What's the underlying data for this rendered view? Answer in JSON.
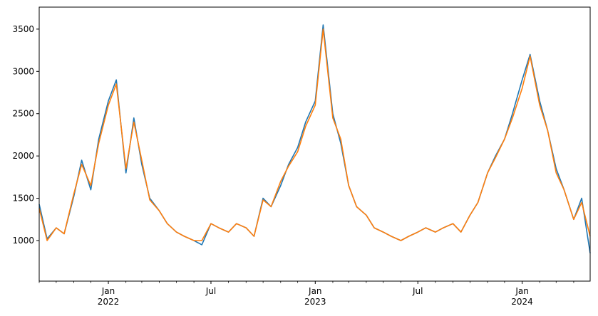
{
  "chart_data": {
    "type": "line",
    "title": "",
    "xlabel": "",
    "ylabel": "",
    "x_range": [
      "2021-09-01",
      "2024-04-30"
    ],
    "ylim": [
      520,
      3760
    ],
    "y_ticks": [
      1000,
      1500,
      2000,
      2500,
      3000,
      3500
    ],
    "y_tick_labels": [
      "1000",
      "1500",
      "2000",
      "2500",
      "3000",
      "3500"
    ],
    "x_major_ticks": [
      {
        "date": "2022-01-01",
        "label": "Jan",
        "year": "2022"
      },
      {
        "date": "2022-07-01",
        "label": "Jul",
        "year": ""
      },
      {
        "date": "2023-01-01",
        "label": "Jan",
        "year": "2023"
      },
      {
        "date": "2023-07-01",
        "label": "Jul",
        "year": ""
      },
      {
        "date": "2024-01-01",
        "label": "Jan",
        "year": "2024"
      }
    ],
    "x_minor_ticks": [
      "2021-09-01",
      "2021-10-01",
      "2021-11-01",
      "2021-12-01",
      "2022-02-01",
      "2022-03-01",
      "2022-04-01",
      "2022-05-01",
      "2022-06-01",
      "2022-08-01",
      "2022-09-01",
      "2022-10-01",
      "2022-11-01",
      "2022-12-01",
      "2023-02-01",
      "2023-03-01",
      "2023-04-01",
      "2023-05-01",
      "2023-06-01",
      "2023-08-01",
      "2023-09-01",
      "2023-10-01",
      "2023-11-01",
      "2023-12-01",
      "2024-02-01",
      "2024-03-01",
      "2024-04-01"
    ],
    "grid": false,
    "legend": "none",
    "series": [
      {
        "color": "#1f77b4",
        "x": [
          "2021-09-01",
          "2021-09-15",
          "2021-10-01",
          "2021-10-15",
          "2021-11-01",
          "2021-11-15",
          "2021-12-01",
          "2021-12-15",
          "2022-01-01",
          "2022-01-15",
          "2022-02-01",
          "2022-02-15",
          "2022-03-01",
          "2022-03-15",
          "2022-04-01",
          "2022-04-15",
          "2022-05-01",
          "2022-05-15",
          "2022-06-01",
          "2022-06-15",
          "2022-07-01",
          "2022-07-15",
          "2022-08-01",
          "2022-08-15",
          "2022-09-01",
          "2022-09-15",
          "2022-10-01",
          "2022-10-15",
          "2022-11-01",
          "2022-11-15",
          "2022-12-01",
          "2022-12-15",
          "2023-01-01",
          "2023-01-15",
          "2023-02-01",
          "2023-02-15",
          "2023-03-01",
          "2023-03-15",
          "2023-04-01",
          "2023-04-15",
          "2023-05-01",
          "2023-05-15",
          "2023-06-01",
          "2023-06-15",
          "2023-07-01",
          "2023-07-15",
          "2023-08-01",
          "2023-08-15",
          "2023-09-01",
          "2023-09-15",
          "2023-10-01",
          "2023-10-15",
          "2023-11-01",
          "2023-11-15",
          "2023-12-01",
          "2023-12-15",
          "2024-01-01",
          "2024-01-15",
          "2024-02-01",
          "2024-02-15",
          "2024-03-01",
          "2024-03-15",
          "2024-04-01",
          "2024-04-15",
          "2024-04-30"
        ],
        "values": [
          1430,
          1020,
          1150,
          1080,
          1520,
          1950,
          1600,
          2200,
          2650,
          2900,
          1800,
          2450,
          1900,
          1500,
          1350,
          1200,
          1100,
          1050,
          1000,
          950,
          1200,
          1150,
          1100,
          1200,
          1150,
          1050,
          1500,
          1400,
          1650,
          1900,
          2100,
          2400,
          2650,
          3550,
          2500,
          2150,
          1650,
          1400,
          1300,
          1150,
          1100,
          1050,
          1000,
          1050,
          1100,
          1150,
          1100,
          1150,
          1200,
          1100,
          1300,
          1450,
          1800,
          2000,
          2200,
          2500,
          2900,
          3200,
          2650,
          2300,
          1850,
          1600,
          1250,
          1500,
          850
        ]
      },
      {
        "color": "#ff7f0e",
        "x": [
          "2021-09-01",
          "2021-09-15",
          "2021-10-01",
          "2021-10-15",
          "2021-11-01",
          "2021-11-15",
          "2021-12-01",
          "2021-12-15",
          "2022-01-01",
          "2022-01-15",
          "2022-02-01",
          "2022-02-15",
          "2022-03-01",
          "2022-03-15",
          "2022-04-01",
          "2022-04-15",
          "2022-05-01",
          "2022-05-15",
          "2022-06-01",
          "2022-06-15",
          "2022-07-01",
          "2022-07-15",
          "2022-08-01",
          "2022-08-15",
          "2022-09-01",
          "2022-09-15",
          "2022-10-01",
          "2022-10-15",
          "2022-11-01",
          "2022-11-15",
          "2022-12-01",
          "2022-12-15",
          "2023-01-01",
          "2023-01-15",
          "2023-02-01",
          "2023-02-15",
          "2023-03-01",
          "2023-03-15",
          "2023-04-01",
          "2023-04-15",
          "2023-05-01",
          "2023-05-15",
          "2023-06-01",
          "2023-06-15",
          "2023-07-01",
          "2023-07-15",
          "2023-08-01",
          "2023-08-15",
          "2023-09-01",
          "2023-09-15",
          "2023-10-01",
          "2023-10-15",
          "2023-11-01",
          "2023-11-15",
          "2023-12-01",
          "2023-12-15",
          "2024-01-01",
          "2024-01-15",
          "2024-02-01",
          "2024-02-15",
          "2024-03-01",
          "2024-03-15",
          "2024-04-01",
          "2024-04-15",
          "2024-04-30"
        ],
        "values": [
          1380,
          1000,
          1150,
          1080,
          1550,
          1900,
          1650,
          2150,
          2600,
          2850,
          1850,
          2400,
          1950,
          1480,
          1350,
          1200,
          1100,
          1050,
          1000,
          1000,
          1200,
          1150,
          1100,
          1200,
          1150,
          1050,
          1480,
          1400,
          1700,
          1880,
          2050,
          2350,
          2600,
          3500,
          2450,
          2200,
          1650,
          1400,
          1300,
          1150,
          1100,
          1050,
          1000,
          1050,
          1100,
          1150,
          1100,
          1150,
          1200,
          1100,
          1300,
          1450,
          1800,
          1980,
          2200,
          2450,
          2800,
          3180,
          2600,
          2300,
          1800,
          1600,
          1250,
          1450,
          1050
        ]
      }
    ]
  }
}
